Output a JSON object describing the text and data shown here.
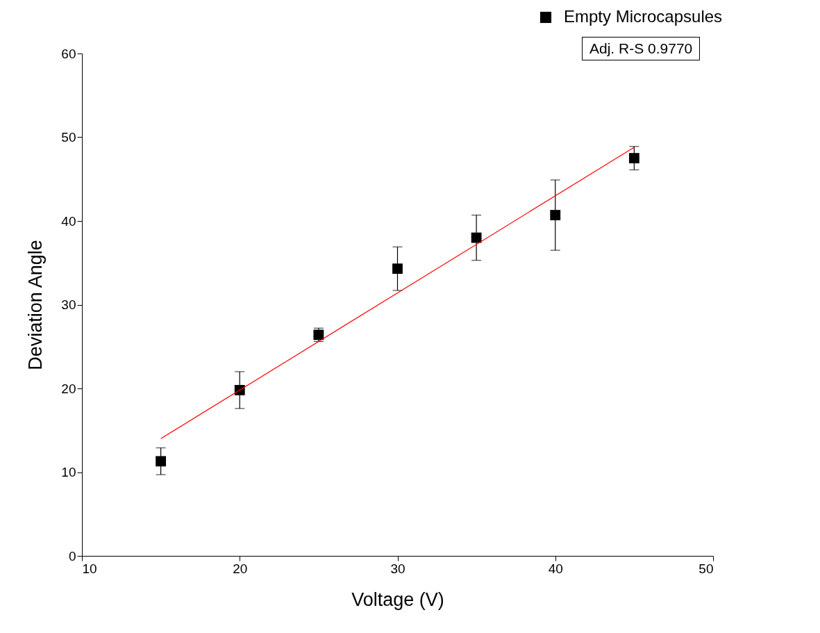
{
  "chart_data": {
    "type": "scatter",
    "xlabel": "Voltage (V)",
    "ylabel": "Deviation Angle",
    "x": [
      15,
      20,
      25,
      30,
      35,
      40,
      45
    ],
    "series": [
      {
        "name": "Empty Microcapsules",
        "color": "#000000",
        "marker": "square",
        "values": [
          11.3,
          19.8,
          26.4,
          34.3,
          38.0,
          40.7,
          47.5
        ],
        "errors": [
          1.6,
          2.2,
          0.8,
          2.6,
          2.7,
          4.2,
          1.4
        ]
      },
      {
        "type": "line",
        "color": "#ff0000",
        "x": [
          15,
          45
        ],
        "values": [
          14.0,
          48.8
        ]
      }
    ],
    "xlim": [
      10,
      50
    ],
    "xticks": [
      10,
      20,
      30,
      40,
      50
    ],
    "ylim": [
      0,
      60
    ],
    "yticks": [
      0,
      10,
      20,
      30,
      40,
      50,
      60
    ],
    "legend": "top right",
    "grid": false,
    "annotations": [
      "Adj. R-S 0.9770"
    ]
  }
}
